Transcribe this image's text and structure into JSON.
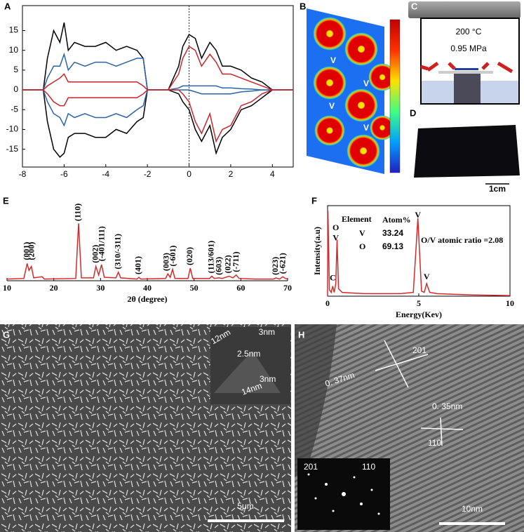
{
  "panel_labels": [
    "A",
    "B",
    "C",
    "D",
    "E",
    "F",
    "G",
    "H"
  ],
  "chart_data": [
    {
      "type": "line",
      "x": [
        -8,
        -7.5,
        -7,
        -6.8,
        -6.5,
        -6.2,
        -6,
        -5.8,
        -5.5,
        -5,
        -4.5,
        -4,
        -3.5,
        -3,
        -2.5,
        -2.2,
        -2,
        -1.5,
        -1,
        -0.5,
        -0.3,
        0,
        0.3,
        0.6,
        1,
        1.3,
        1.6,
        2,
        2.5,
        3,
        3.5,
        4,
        4.5,
        5
      ],
      "series": [
        {
          "color": "#000000",
          "values": [
            0,
            0,
            0,
            8,
            15,
            12,
            17,
            10,
            12,
            11,
            11,
            12,
            10,
            11,
            10,
            8,
            0,
            0,
            0,
            6,
            11,
            14,
            13,
            8,
            12,
            10,
            6,
            6,
            5,
            3,
            2,
            0,
            0,
            0
          ]
        },
        {
          "color": "#000000",
          "values": [
            0,
            0,
            0,
            -8,
            -15,
            -17,
            -16,
            -12,
            -11,
            -11,
            -12,
            -12,
            -10,
            -11,
            -8,
            -7,
            0,
            0,
            0,
            -1,
            -3,
            -5,
            -10,
            -13,
            -9,
            -16,
            -12,
            -10,
            -5,
            -4,
            -2,
            0,
            0,
            0
          ]
        },
        {
          "color": "#2a64a8",
          "values": [
            0,
            0,
            0,
            3,
            6,
            6,
            9,
            5,
            7,
            6,
            7,
            7,
            6,
            7,
            8,
            8,
            0,
            0,
            0,
            0.5,
            1,
            1,
            1,
            1,
            1,
            1,
            0.5,
            0.5,
            0.3,
            0.2,
            0,
            0,
            0,
            0
          ]
        },
        {
          "color": "#2a64a8",
          "values": [
            0,
            0,
            0,
            -3,
            -6,
            -7,
            -9,
            -6,
            -7,
            -6,
            -7,
            -7,
            -6,
            -7,
            -5,
            -4,
            0,
            0,
            0,
            0,
            0,
            0,
            -0.5,
            -1,
            -1,
            -1,
            -1,
            -1,
            -0.5,
            -0.3,
            0,
            0,
            0,
            0
          ]
        },
        {
          "color": "#c8262c",
          "values": [
            0,
            0,
            0,
            1,
            2,
            3,
            4,
            2,
            2,
            2,
            2,
            2,
            2,
            2,
            2,
            1,
            0,
            0,
            0,
            4,
            8,
            11,
            10,
            6,
            9,
            7,
            4,
            4,
            3,
            2,
            1,
            0,
            0,
            0
          ]
        },
        {
          "color": "#c8262c",
          "values": [
            0,
            0,
            0,
            -1,
            -3,
            -4,
            -4,
            -2,
            -2,
            -2,
            -2,
            -2,
            -2,
            -2,
            -2,
            -1,
            0,
            0,
            0,
            0,
            -1,
            -3,
            -8,
            -11,
            -6,
            -13,
            -10,
            -9,
            -4,
            -3,
            -1,
            0,
            0,
            0
          ]
        }
      ],
      "xlim": [
        -8,
        5
      ],
      "xticks": [
        -8,
        -6,
        -4,
        -2,
        0,
        2,
        4
      ],
      "ylim": [
        -19.5,
        21.3
      ],
      "yticks": [
        -15,
        -10,
        -5,
        0,
        5,
        10,
        15
      ],
      "vline": 0,
      "vline_color": "#1a1aa8"
    },
    {
      "type": "line",
      "xlabel": "2θ (degree)",
      "x": [
        10,
        13.6,
        14.3,
        14.7,
        15.2,
        15.7,
        17.5,
        18,
        24.7,
        25.3,
        25.9,
        28.5,
        29,
        29.6,
        30.2,
        30.8,
        33.3,
        33.8,
        34.3,
        37.8,
        38.2,
        38.6,
        43.9,
        44.4,
        44.9,
        45.4,
        45.9,
        48.7,
        49.2,
        49.7,
        53.3,
        53.8,
        54.3,
        55.3,
        56,
        57.5,
        58.3,
        59,
        59.6,
        63,
        67,
        67.5,
        68.3,
        69,
        69.5,
        70
      ],
      "values": [
        3,
        4,
        30,
        18,
        25,
        5,
        7,
        3,
        4,
        100,
        5,
        5,
        25,
        10,
        28,
        6,
        5,
        15,
        5,
        3,
        6,
        3,
        4,
        12,
        6,
        20,
        4,
        4,
        22,
        4,
        4,
        8,
        4,
        5,
        4,
        8,
        5,
        10,
        4,
        3,
        3,
        5,
        3,
        7,
        4,
        3
      ],
      "color": "#d42a2a",
      "xlim": [
        10,
        70
      ],
      "xticks": [
        10,
        20,
        30,
        40,
        50,
        60,
        70
      ],
      "ylim": [
        0,
        120
      ],
      "annotations": [
        {
          "text": "(001)",
          "x": 14.3,
          "y": 36
        },
        {
          "text": "(200)",
          "x": 15.4,
          "y": 36
        },
        {
          "text": "(110)",
          "x": 25.3,
          "y": 104
        },
        {
          "text": "(002)",
          "x": 29,
          "y": 31
        },
        {
          "text": "(-401/111)",
          "x": 30.4,
          "y": 34
        },
        {
          "text": "(310/-311)",
          "x": 33.8,
          "y": 20
        },
        {
          "text": "(401)",
          "x": 38.2,
          "y": 11
        },
        {
          "text": "(003)",
          "x": 44.2,
          "y": 17
        },
        {
          "text": "(-601)",
          "x": 45.6,
          "y": 25
        },
        {
          "text": "(020)",
          "x": 49.2,
          "y": 27
        },
        {
          "text": "(113/601)",
          "x": 53.8,
          "y": 13
        },
        {
          "text": "(603)",
          "x": 55.4,
          "y": 10
        },
        {
          "text": "(022)",
          "x": 57.4,
          "y": 13
        },
        {
          "text": "(-711)",
          "x": 59.1,
          "y": 15
        },
        {
          "text": "(023)",
          "x": 67.5,
          "y": 10
        },
        {
          "text": "(-621)",
          "x": 69.1,
          "y": 12
        }
      ]
    },
    {
      "type": "line",
      "xlabel": "Energy(Kev)",
      "ylabel": "Intensity(a.u)",
      "x": [
        0,
        0.02,
        0.1,
        0.2,
        0.28,
        0.36,
        0.45,
        0.52,
        0.6,
        0.8,
        2,
        4,
        4.7,
        4.95,
        5.15,
        5.3,
        5.43,
        5.6,
        6,
        8,
        10
      ],
      "values": [
        0,
        68,
        5,
        3,
        8,
        3,
        10,
        45,
        6,
        3,
        2,
        2,
        3,
        62,
        4,
        3,
        10,
        3,
        2,
        1,
        0.5
      ],
      "color": "#d42a2a",
      "xlim": [
        0,
        10
      ],
      "xticks": [
        0,
        5,
        10
      ],
      "ylim": [
        0,
        72
      ],
      "annotations": [
        {
          "text": "C",
          "x": 0.28,
          "y": 14
        },
        {
          "text": "O",
          "x": 0.45,
          "y": 54
        },
        {
          "text": "V",
          "x": 0.45,
          "y": 46
        },
        {
          "text": "V",
          "x": 4.95,
          "y": 64
        },
        {
          "text": "V",
          "x": 5.43,
          "y": 15
        }
      ],
      "table": {
        "header": [
          "Element",
          "Atom%"
        ],
        "rows": [
          [
            "V",
            33.24
          ],
          [
            "O",
            69.13
          ]
        ]
      },
      "note": "O/V atomic ratio =2.08"
    }
  ],
  "panel_b": {
    "labels": [
      "V",
      "V",
      "V",
      "V"
    ]
  },
  "panel_c": {
    "temperature": "200 °C",
    "pressure": "0.95 MPa"
  },
  "panel_d": {
    "scale_bar": "1cm"
  },
  "panel_g": {
    "scale_bar": "5μm",
    "inset_labels": [
      "3nm",
      "12nm",
      "2.5nm",
      "3nm",
      "14nm"
    ]
  },
  "panel_h": {
    "spacing_1": "0. 37nm",
    "plane_1": "201",
    "spacing_2": "0. 35nm",
    "plane_2": "110",
    "inset_labels": [
      "201",
      "110"
    ],
    "scale_bar": "10nm"
  }
}
